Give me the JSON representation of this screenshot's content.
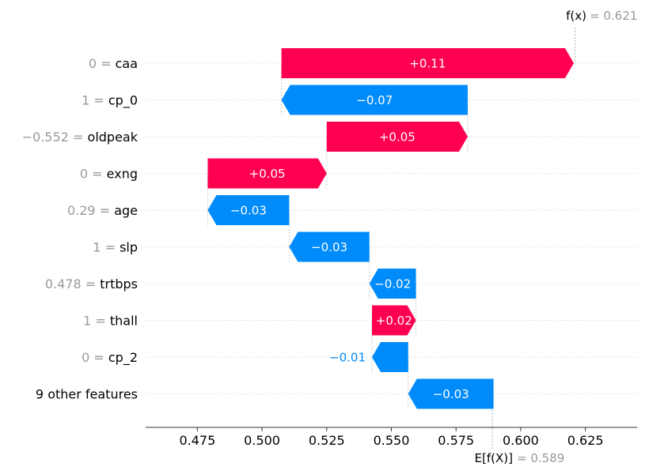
{
  "chart_data": {
    "type": "waterfall",
    "base_value": 0.589,
    "base_label": "E[f(X)]",
    "base_value_text": "= 0.589",
    "output_value": 0.621,
    "output_label": "f(x)",
    "output_value_text": "= 0.621",
    "xlim": [
      0.455,
      0.645
    ],
    "xticks": [
      0.475,
      0.5,
      0.525,
      0.55,
      0.575,
      0.6,
      0.625
    ],
    "xtick_labels": [
      "0.475",
      "0.500",
      "0.525",
      "0.550",
      "0.575",
      "0.600",
      "0.625"
    ],
    "features": [
      {
        "value": "0",
        "name": "caa",
        "start": 0.5075,
        "end": 0.6205,
        "label": "+0.11",
        "sign": "pos",
        "label_outside": false
      },
      {
        "value": "1",
        "name": "cp_0",
        "start": 0.5795,
        "end": 0.5075,
        "label": "−0.07",
        "sign": "neg",
        "label_outside": false
      },
      {
        "value": "−0.552",
        "name": "oldpeak",
        "start": 0.525,
        "end": 0.5795,
        "label": "+0.05",
        "sign": "pos",
        "label_outside": false
      },
      {
        "value": "0",
        "name": "exng",
        "start": 0.479,
        "end": 0.525,
        "label": "+0.05",
        "sign": "pos",
        "label_outside": false
      },
      {
        "value": "0.29",
        "name": "age",
        "start": 0.5105,
        "end": 0.479,
        "label": "−0.03",
        "sign": "neg",
        "label_outside": false
      },
      {
        "value": "1",
        "name": "slp",
        "start": 0.5415,
        "end": 0.5105,
        "label": "−0.03",
        "sign": "neg",
        "label_outside": false
      },
      {
        "value": "0.478",
        "name": "trtbps",
        "start": 0.5595,
        "end": 0.5415,
        "label": "−0.02",
        "sign": "neg",
        "label_outside": false
      },
      {
        "value": "1",
        "name": "thall",
        "start": 0.5425,
        "end": 0.5595,
        "label": "+0.02",
        "sign": "pos",
        "label_outside": false
      },
      {
        "value": "0",
        "name": "cp_2",
        "start": 0.5565,
        "end": 0.5425,
        "label": "−0.01",
        "sign": "neg",
        "label_outside": true
      },
      {
        "value": "",
        "name": "9 other features",
        "start": 0.5895,
        "end": 0.5565,
        "label": "−0.03",
        "sign": "neg",
        "label_outside": false
      }
    ],
    "colors": {
      "positive": "#ff0051",
      "negative": "#008bfb",
      "label_inside": "#ffffff",
      "axis": "#333333",
      "grid": "#cccccc",
      "muted": "#999999"
    }
  }
}
